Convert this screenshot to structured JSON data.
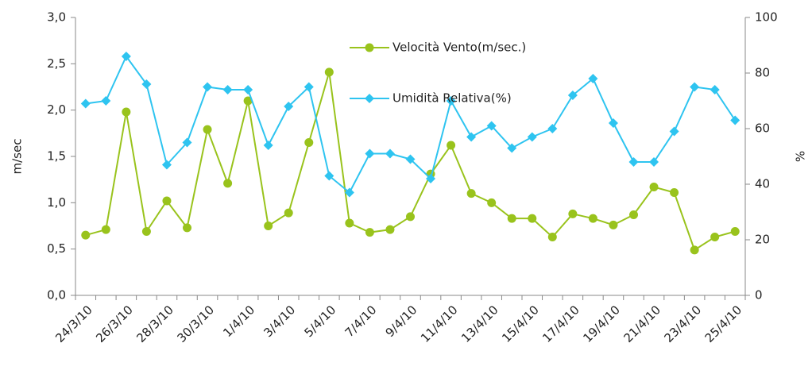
{
  "chart_data": {
    "type": "line",
    "categories": [
      "24/3/10",
      null,
      "26/3/10",
      null,
      "28/3/10",
      null,
      "30/3/10",
      null,
      "1/4/10",
      null,
      "3/4/10",
      null,
      "5/4/10",
      null,
      "7/4/10",
      null,
      "9/4/10",
      null,
      "11/4/10",
      null,
      "13/4/10",
      null,
      "15/4/10",
      null,
      "17/4/10",
      null,
      "19/4/10",
      null,
      "21/4/10",
      null,
      "23/4/10",
      null,
      "25/4/10"
    ],
    "series": [
      {
        "name": "Velocità Vento(m/sec.)",
        "color": "#99c31c",
        "marker": "circle",
        "values": [
          0.65,
          0.71,
          1.98,
          0.69,
          1.02,
          0.73,
          1.79,
          1.21,
          2.1,
          0.75,
          0.89,
          1.65,
          2.41,
          0.78,
          0.68,
          0.71,
          0.85,
          1.31,
          1.62,
          1.1,
          1.0,
          0.83,
          0.83,
          0.63,
          0.88,
          0.83,
          0.76,
          0.87,
          1.17,
          1.11,
          0.49,
          0.63,
          0.69
        ]
      },
      {
        "name": "Umidità Relativa(%)",
        "color": "#2ec4f0",
        "marker": "diamond",
        "axis": "y2",
        "values": [
          69,
          70,
          86,
          76,
          47,
          55,
          75,
          74,
          74,
          54,
          68,
          75,
          43,
          37,
          51,
          51,
          49,
          42,
          70,
          57,
          61,
          53,
          57,
          60,
          72,
          78,
          62,
          48,
          48,
          59,
          75,
          74,
          63
        ]
      }
    ],
    "ylabel": "m/sec",
    "y2label": "%",
    "ylim": [
      0,
      3
    ],
    "yticks": [
      {
        "value": 0,
        "label": "0,0"
      },
      {
        "value": 0.5,
        "label": "0,5"
      },
      {
        "value": 1,
        "label": "1,0"
      },
      {
        "value": 1.5,
        "label": "1,5"
      },
      {
        "value": 2,
        "label": "2,0"
      },
      {
        "value": 2.5,
        "label": "2,5"
      },
      {
        "value": 3,
        "label": "3,0"
      }
    ],
    "y2lim": [
      0,
      100
    ],
    "y2ticks": [
      0,
      20,
      40,
      60,
      80,
      100
    ],
    "grid": false,
    "legend": "upper center"
  }
}
